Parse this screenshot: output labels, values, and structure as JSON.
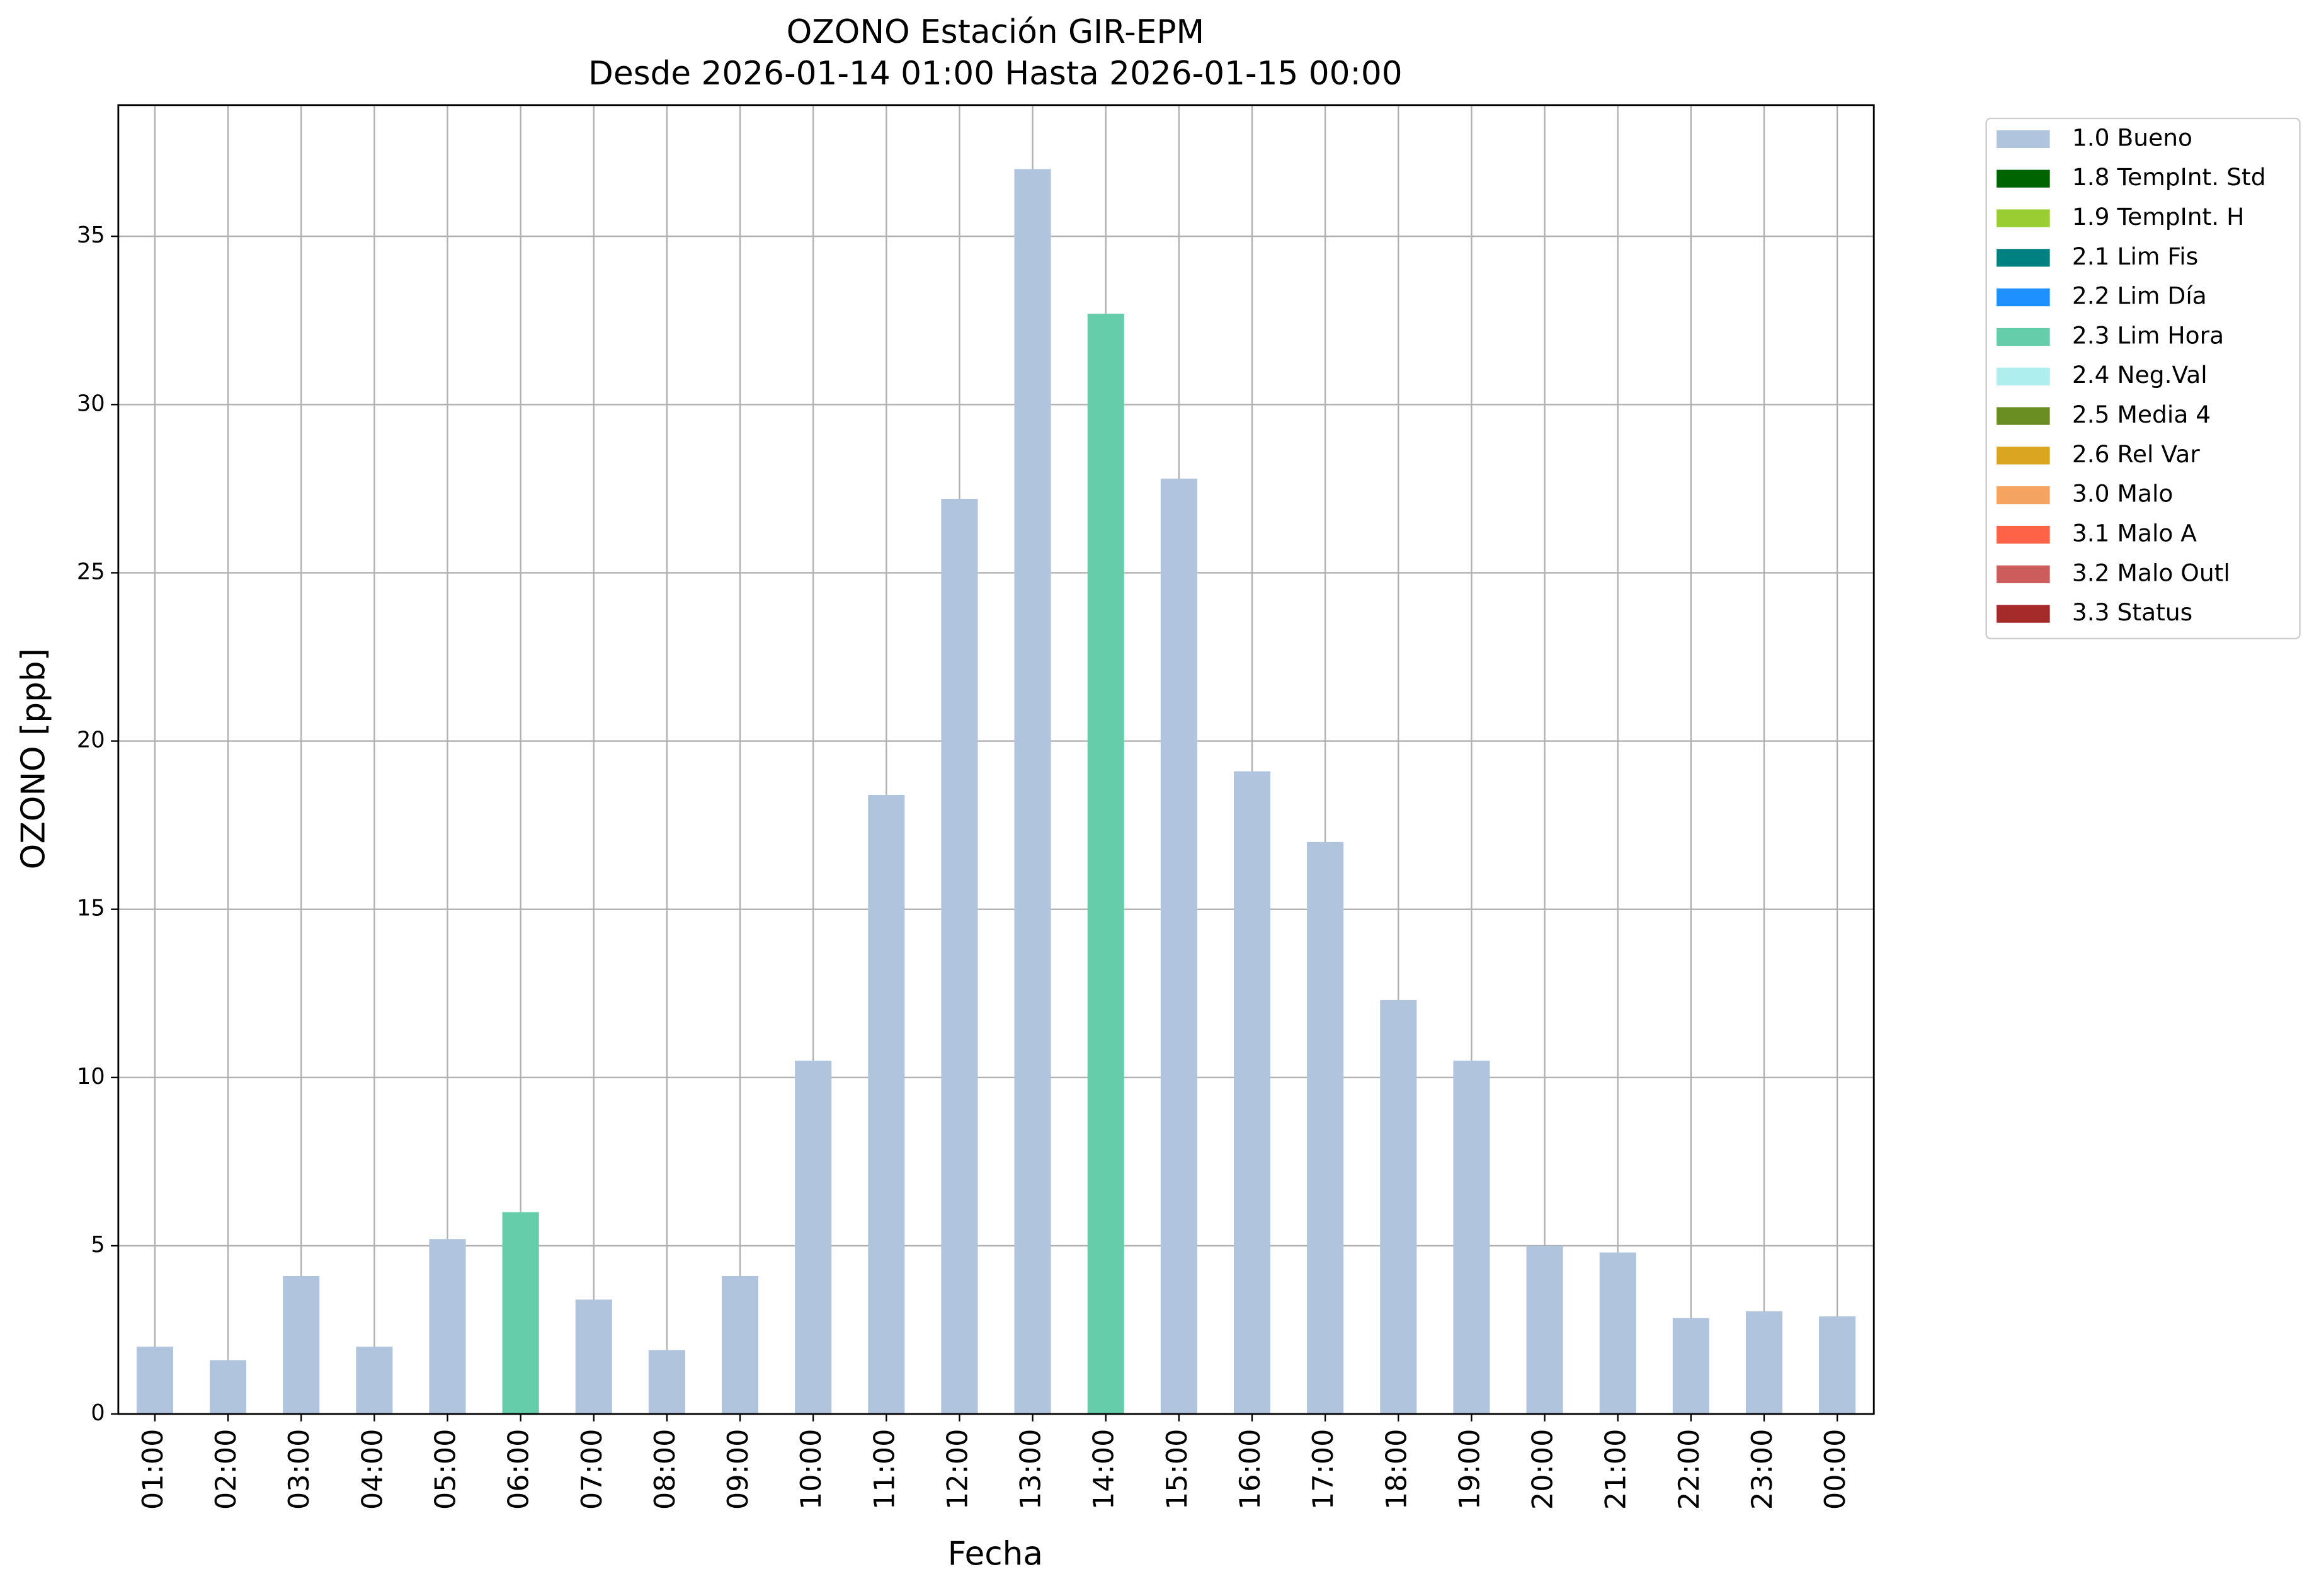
{
  "chart_data": {
    "type": "bar",
    "title": "OZONO Estación GIR-EPM",
    "subtitle": "Desde 2026-01-14 01:00 Hasta 2026-01-15 00:00",
    "x_label": "Fecha",
    "y_label": "OZONO [ppb]",
    "categories": [
      "01:00",
      "02:00",
      "03:00",
      "04:00",
      "05:00",
      "06:00",
      "07:00",
      "08:00",
      "09:00",
      "10:00",
      "11:00",
      "12:00",
      "13:00",
      "14:00",
      "15:00",
      "16:00",
      "17:00",
      "18:00",
      "19:00",
      "20:00",
      "21:00",
      "22:00",
      "23:00",
      "00:00"
    ],
    "series": [
      {
        "name": "1.0 Bueno",
        "color": "#b0c4de",
        "values": [
          2.0,
          1.6,
          4.1,
          2.0,
          5.2,
          null,
          3.4,
          1.9,
          4.1,
          10.5,
          18.4,
          27.2,
          37.0,
          null,
          27.8,
          19.1,
          17.0,
          12.3,
          10.5,
          5.0,
          4.8,
          2.85,
          3.05,
          2.9
        ]
      },
      {
        "name": "1.8 TempInt. Std",
        "color": "#006400",
        "values": [
          null,
          null,
          null,
          null,
          null,
          null,
          null,
          null,
          null,
          null,
          null,
          null,
          null,
          null,
          null,
          null,
          null,
          null,
          null,
          null,
          null,
          null,
          null,
          null
        ]
      },
      {
        "name": "1.9 TempInt. H",
        "color": "#9acd32",
        "values": [
          null,
          null,
          null,
          null,
          null,
          null,
          null,
          null,
          null,
          null,
          null,
          null,
          null,
          null,
          null,
          null,
          null,
          null,
          null,
          null,
          null,
          null,
          null,
          null
        ]
      },
      {
        "name": "2.1 Lim Fis",
        "color": "#008080",
        "values": [
          null,
          null,
          null,
          null,
          null,
          null,
          null,
          null,
          null,
          null,
          null,
          null,
          null,
          null,
          null,
          null,
          null,
          null,
          null,
          null,
          null,
          null,
          null,
          null
        ]
      },
      {
        "name": "2.2 Lim Día",
        "color": "#1e90ff",
        "values": [
          null,
          null,
          null,
          null,
          null,
          null,
          null,
          null,
          null,
          null,
          null,
          null,
          null,
          null,
          null,
          null,
          null,
          null,
          null,
          null,
          null,
          null,
          null,
          null
        ]
      },
      {
        "name": "2.3 Lim Hora",
        "color": "#66cdaa",
        "values": [
          null,
          null,
          null,
          null,
          null,
          6.0,
          null,
          null,
          null,
          null,
          null,
          null,
          null,
          32.7,
          null,
          null,
          null,
          null,
          null,
          null,
          null,
          null,
          null,
          null
        ]
      },
      {
        "name": "2.4 Neg.Val",
        "color": "#afeeee",
        "values": [
          null,
          null,
          null,
          null,
          null,
          null,
          null,
          null,
          null,
          null,
          null,
          null,
          null,
          null,
          null,
          null,
          null,
          null,
          null,
          null,
          null,
          null,
          null,
          null
        ]
      },
      {
        "name": "2.5 Media 4",
        "color": "#6b8e23",
        "values": [
          null,
          null,
          null,
          null,
          null,
          null,
          null,
          null,
          null,
          null,
          null,
          null,
          null,
          null,
          null,
          null,
          null,
          null,
          null,
          null,
          null,
          null,
          null,
          null
        ]
      },
      {
        "name": "2.6 Rel Var",
        "color": "#daa520",
        "values": [
          null,
          null,
          null,
          null,
          null,
          null,
          null,
          null,
          null,
          null,
          null,
          null,
          null,
          null,
          null,
          null,
          null,
          null,
          null,
          null,
          null,
          null,
          null,
          null
        ]
      },
      {
        "name": "3.0 Malo",
        "color": "#f4a460",
        "values": [
          null,
          null,
          null,
          null,
          null,
          null,
          null,
          null,
          null,
          null,
          null,
          null,
          null,
          null,
          null,
          null,
          null,
          null,
          null,
          null,
          null,
          null,
          null,
          null
        ]
      },
      {
        "name": "3.1 Malo A",
        "color": "#ff6347",
        "values": [
          null,
          null,
          null,
          null,
          null,
          null,
          null,
          null,
          null,
          null,
          null,
          null,
          null,
          null,
          null,
          null,
          null,
          null,
          null,
          null,
          null,
          null,
          null,
          null
        ]
      },
      {
        "name": "3.2 Malo Outl",
        "color": "#cd5c5c",
        "values": [
          null,
          null,
          null,
          null,
          null,
          null,
          null,
          null,
          null,
          null,
          null,
          null,
          null,
          null,
          null,
          null,
          null,
          null,
          null,
          null,
          null,
          null,
          null,
          null
        ]
      },
      {
        "name": "3.3 Status",
        "color": "#a52a2a",
        "values": [
          null,
          null,
          null,
          null,
          null,
          null,
          null,
          null,
          null,
          null,
          null,
          null,
          null,
          null,
          null,
          null,
          null,
          null,
          null,
          null,
          null,
          null,
          null,
          null
        ]
      }
    ],
    "ylim": [
      0,
      38.9
    ],
    "yticks": [
      0,
      5,
      10,
      15,
      20,
      25,
      30,
      35
    ],
    "grid": true,
    "legend": "outside-upper-right"
  }
}
